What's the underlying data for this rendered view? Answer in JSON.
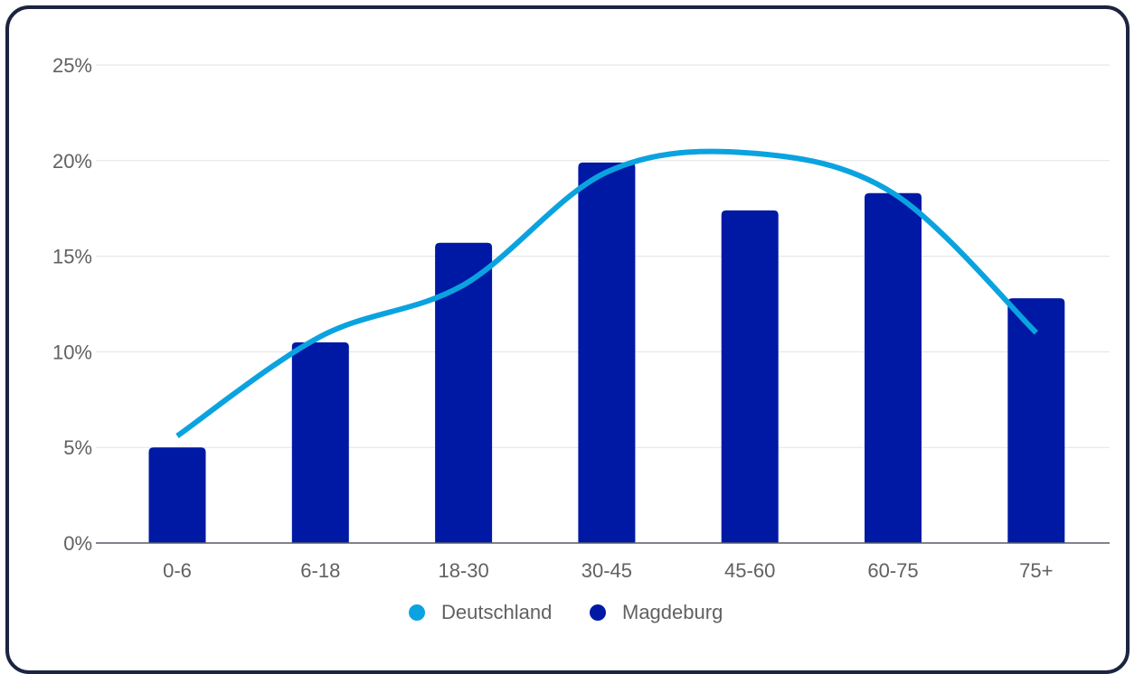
{
  "chart_data": {
    "type": "bar",
    "categories": [
      "0-6",
      "6-18",
      "18-30",
      "30-45",
      "45-60",
      "60-75",
      "75+"
    ],
    "y_ticks": [
      "0%",
      "5%",
      "10%",
      "15%",
      "20%",
      "25%"
    ],
    "ylim": [
      0,
      25
    ],
    "grid": true,
    "legend_position": "bottom",
    "series": [
      {
        "name": "Deutschland",
        "type": "line",
        "smooth": true,
        "color": "#0aa3e0",
        "values": [
          5.6,
          10.8,
          13.5,
          19.4,
          20.4,
          18.3,
          11.0
        ]
      },
      {
        "name": "Magdeburg",
        "type": "bar",
        "color": "#0019a5",
        "values": [
          5.0,
          10.5,
          15.7,
          19.9,
          17.4,
          18.3,
          12.8
        ]
      }
    ]
  }
}
